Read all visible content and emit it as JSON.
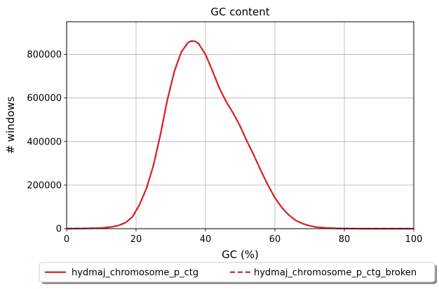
{
  "chart_data": {
    "type": "line",
    "title": "GC content",
    "xlabel": "GC (%)",
    "ylabel": "# windows",
    "xlim": [
      0,
      100
    ],
    "ylim": [
      0,
      950000
    ],
    "xticks": [
      0,
      20,
      40,
      60,
      80,
      100
    ],
    "yticks": [
      0,
      200000,
      400000,
      600000,
      800000
    ],
    "xtick_labels": [
      "0",
      "20",
      "40",
      "60",
      "80",
      "100"
    ],
    "ytick_labels": [
      "0",
      "200000",
      "400000",
      "600000",
      "800000"
    ],
    "grid": true,
    "legend_position": "bottom-center",
    "color": "#d62728",
    "series": [
      {
        "name": "hydmaj_chromosome_p_ctg",
        "style": "solid",
        "x": [
          0,
          5,
          10,
          13,
          15,
          17,
          19,
          21,
          23,
          25,
          27,
          29,
          31,
          33,
          35,
          36,
          37,
          38,
          40,
          42,
          44,
          46,
          48,
          50,
          52,
          54,
          56,
          58,
          60,
          62,
          64,
          66,
          68,
          70,
          72,
          75,
          78,
          80,
          85,
          90,
          100
        ],
        "y": [
          0,
          1000,
          3000,
          8000,
          15000,
          28000,
          55000,
          110000,
          185000,
          290000,
          430000,
          590000,
          720000,
          810000,
          855000,
          862000,
          860000,
          850000,
          800000,
          725000,
          645000,
          582000,
          530000,
          470000,
          400000,
          335000,
          265000,
          200000,
          142000,
          97000,
          63000,
          38000,
          23000,
          13000,
          7000,
          3000,
          1200,
          600,
          100,
          0,
          0
        ]
      },
      {
        "name": "hydmaj_chromosome_p_ctg_broken",
        "style": "dashed",
        "x": [
          0,
          5,
          10,
          13,
          15,
          17,
          19,
          21,
          23,
          25,
          27,
          29,
          31,
          33,
          35,
          36,
          37,
          38,
          40,
          42,
          44,
          46,
          48,
          50,
          52,
          54,
          56,
          58,
          60,
          62,
          64,
          66,
          68,
          70,
          72,
          75,
          78,
          80,
          85,
          90,
          100
        ],
        "y": [
          0,
          1000,
          3000,
          8000,
          15000,
          28000,
          55000,
          110000,
          185000,
          290000,
          430000,
          590000,
          720000,
          810000,
          855000,
          862000,
          860000,
          850000,
          800000,
          725000,
          645000,
          582000,
          530000,
          470000,
          400000,
          335000,
          265000,
          200000,
          142000,
          97000,
          63000,
          38000,
          23000,
          13000,
          7000,
          3000,
          1200,
          600,
          100,
          0,
          0
        ]
      }
    ]
  }
}
